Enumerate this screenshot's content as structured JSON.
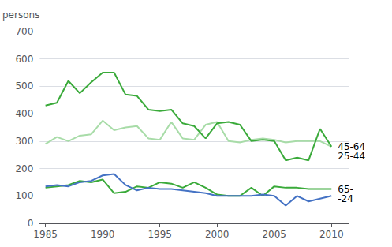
{
  "chart_data": {
    "type": "line",
    "ylabel": "persons",
    "x": [
      1985,
      1986,
      1987,
      1988,
      1989,
      1990,
      1991,
      1992,
      1993,
      1994,
      1995,
      1996,
      1997,
      1998,
      1999,
      2000,
      2001,
      2002,
      2003,
      2004,
      2005,
      2006,
      2007,
      2008,
      2009,
      2010
    ],
    "series": [
      {
        "name": "45-64",
        "color": "#a8dca8",
        "values": [
          290,
          315,
          300,
          320,
          325,
          375,
          340,
          350,
          355,
          310,
          305,
          370,
          310,
          305,
          360,
          370,
          300,
          295,
          305,
          310,
          305,
          295,
          300,
          300,
          300,
          280
        ]
      },
      {
        "name": "25-44",
        "color": "#3aaa3a",
        "values": [
          430,
          440,
          520,
          475,
          515,
          550,
          550,
          470,
          465,
          415,
          410,
          415,
          365,
          355,
          310,
          365,
          370,
          360,
          300,
          305,
          300,
          230,
          240,
          230,
          345,
          280
        ]
      },
      {
        "name": "65-",
        "color": "#3aaa3a",
        "values": [
          130,
          135,
          140,
          155,
          150,
          160,
          110,
          115,
          135,
          130,
          150,
          145,
          130,
          150,
          130,
          105,
          100,
          100,
          130,
          100,
          135,
          130,
          130,
          125,
          125,
          125
        ]
      },
      {
        "name": "-24",
        "color": "#4472c4",
        "values": [
          135,
          140,
          135,
          150,
          155,
          175,
          180,
          140,
          120,
          130,
          125,
          125,
          120,
          115,
          110,
          100,
          100,
          100,
          100,
          105,
          100,
          65,
          100,
          80,
          90,
          100
        ]
      }
    ],
    "xlim": [
      1984.5,
      2011.5
    ],
    "xticks": [
      1985,
      1990,
      1995,
      2000,
      2005,
      2010
    ],
    "ylim": [
      0,
      700
    ],
    "yticks": [
      0,
      100,
      200,
      300,
      400,
      500,
      600,
      700
    ],
    "grid": true
  }
}
